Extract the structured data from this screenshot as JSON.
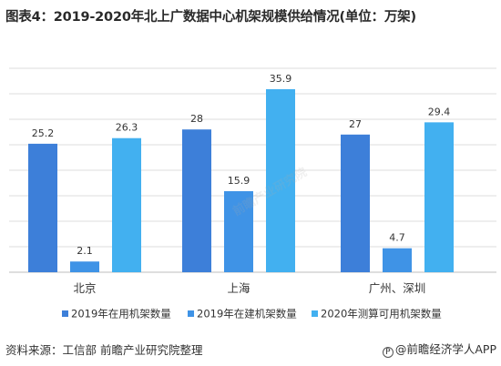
{
  "title": "图表4：2019-2020年北上广数据中心机架规模供给情况(单位：万架)",
  "source": "资料来源：工信部 前瞻产业研究院整理",
  "brand": "@前瞻经济学人APP",
  "chart_data": {
    "type": "bar",
    "categories": [
      "北京",
      "上海",
      "广州、深圳"
    ],
    "series": [
      {
        "name": "2019年在用机架数量",
        "values": [
          25.2,
          28,
          27
        ],
        "color": "#3d7fd9"
      },
      {
        "name": "2019年在建机架数量",
        "values": [
          2.1,
          15.9,
          4.7
        ],
        "color": "#3f93e6"
      },
      {
        "name": "2020年测算可用机架数量",
        "values": [
          26.3,
          35.9,
          29.4
        ],
        "color": "#42b0f0"
      }
    ],
    "value_labels": [
      [
        "25.2",
        "28",
        "27"
      ],
      [
        "2.1",
        "15.9",
        "4.7"
      ],
      [
        "26.3",
        "35.9",
        "29.4"
      ]
    ],
    "ylim": [
      0,
      40
    ],
    "grid": true,
    "legend_position": "bottom"
  }
}
